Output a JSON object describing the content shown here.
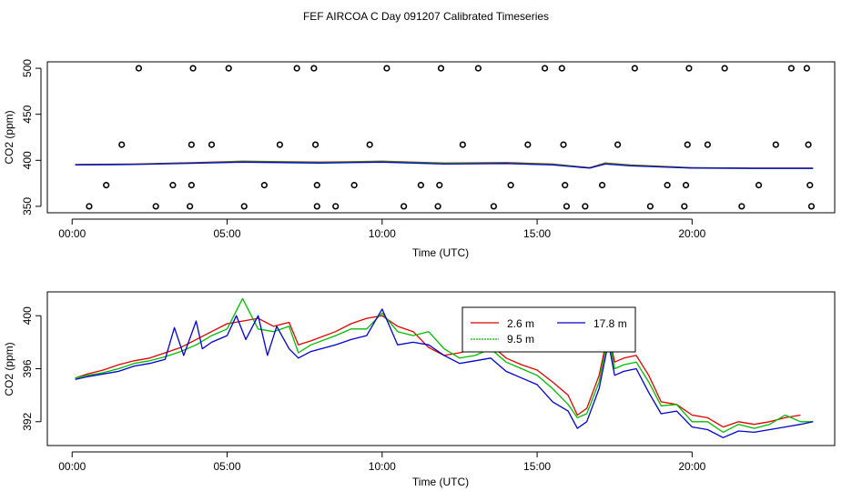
{
  "title": "FEF AIRCOA C  Day 091207  Calibrated Timeseries",
  "chart_data": [
    {
      "type": "scatter",
      "name": "top-panel",
      "xlabel": "Time (UTC)",
      "ylabel": "CO2 (ppm)",
      "xlim": [
        -0.8,
        24.6
      ],
      "ylim": [
        343,
        507
      ],
      "xticks": [
        0,
        5,
        10,
        15,
        20
      ],
      "xtick_labels": [
        "00:00",
        "05:00",
        "10:00",
        "15:00",
        "20:00"
      ],
      "yticks": [
        350,
        400,
        450,
        500
      ],
      "ytick_labels": [
        "350",
        "400",
        "450",
        "500"
      ],
      "calibration_points": {
        "x": [
          0.55,
          1.1,
          1.6,
          2.15,
          2.7,
          3.25,
          3.8,
          3.85,
          3.85,
          3.9,
          4.5,
          5.05,
          5.55,
          6.2,
          6.7,
          7.25,
          7.8,
          7.85,
          7.9,
          7.9,
          8.5,
          9.1,
          9.6,
          10.15,
          10.7,
          11.25,
          11.8,
          11.85,
          11.9,
          12.6,
          13.1,
          13.6,
          14.15,
          14.7,
          15.25,
          15.8,
          15.85,
          15.9,
          15.95,
          16.55,
          17.1,
          17.6,
          18.15,
          18.65,
          19.2,
          19.75,
          19.8,
          19.85,
          19.9,
          20.5,
          21.05,
          21.6,
          22.15,
          22.7,
          23.2,
          23.7,
          23.75,
          23.8,
          23.85
        ],
        "y": [
          350,
          373,
          417,
          500,
          350,
          373,
          350,
          373,
          417,
          500,
          417,
          500,
          350,
          373,
          417,
          500,
          500,
          417,
          373,
          350,
          350,
          373,
          417,
          500,
          350,
          373,
          350,
          373,
          500,
          417,
          500,
          350,
          373,
          417,
          500,
          500,
          417,
          373,
          350,
          350,
          373,
          417,
          500,
          350,
          373,
          350,
          373,
          417,
          500,
          417,
          500,
          350,
          373,
          417,
          500,
          500,
          417,
          373,
          350
        ]
      },
      "series": [
        {
          "name": "2.6 m",
          "color": "#dd0000",
          "x": [
            0.1,
            2,
            4,
            5.5,
            8,
            10,
            12,
            14,
            15.5,
            16.7,
            17.2,
            18,
            20,
            22,
            23.9
          ],
          "values": [
            395.5,
            396,
            397.5,
            399,
            398,
            399,
            397,
            397.5,
            396,
            392,
            397,
            395,
            392,
            391.5,
            391.5
          ]
        },
        {
          "name": "9.5 m",
          "color": "#00bb00",
          "x": [
            0.1,
            2,
            4,
            5.5,
            8,
            10,
            12,
            14,
            15.5,
            16.7,
            17.2,
            18,
            20,
            22,
            23.9
          ],
          "values": [
            395.3,
            395.8,
            397.2,
            398.6,
            397.6,
            398.6,
            396.6,
            397,
            395.6,
            391.8,
            396.6,
            394.6,
            391.7,
            391.4,
            391.4
          ]
        },
        {
          "name": "17.8 m",
          "color": "#0000cc",
          "x": [
            0.1,
            2,
            4,
            5.5,
            8,
            10,
            12,
            14,
            15.5,
            16.7,
            17.2,
            18,
            20,
            22,
            23.9
          ],
          "values": [
            395,
            395.5,
            396.8,
            398,
            397,
            398,
            396,
            396.5,
            395,
            391.5,
            396,
            394,
            391.5,
            391.2,
            391.2
          ]
        }
      ]
    },
    {
      "type": "line",
      "name": "bottom-panel",
      "xlabel": "Time (UTC)",
      "ylabel": "CO2 (ppm)",
      "xlim": [
        -0.8,
        24.6
      ],
      "ylim": [
        390.2,
        401.8
      ],
      "xticks": [
        0,
        5,
        10,
        15,
        20
      ],
      "xtick_labels": [
        "00:00",
        "05:00",
        "10:00",
        "15:00",
        "20:00"
      ],
      "yticks": [
        392,
        396,
        400
      ],
      "ytick_labels": [
        "392",
        "396",
        "400"
      ],
      "legend": {
        "placement": "top-center",
        "entries": [
          "2.6 m",
          "9.5 m",
          "17.8 m"
        ]
      },
      "series": [
        {
          "name": "2.6 m",
          "color": "#dd0000",
          "x": [
            0.1,
            0.5,
            1,
            1.5,
            2,
            2.5,
            3,
            3.5,
            4,
            4.5,
            5,
            5.5,
            6,
            6.5,
            7,
            7.3,
            7.7,
            8.5,
            9,
            9.5,
            10,
            10.5,
            11,
            11.5,
            12,
            12.5,
            13,
            13.5,
            14,
            14.5,
            15,
            15.5,
            16,
            16.3,
            16.6,
            17,
            17.3,
            17.5,
            17.8,
            18.2,
            18.6,
            19,
            19.5,
            20,
            20.5,
            21,
            21.5,
            22,
            22.5,
            23,
            23.5
          ],
          "values": [
            395.3,
            395.6,
            395.9,
            396.3,
            396.6,
            396.8,
            397.2,
            397.6,
            398.2,
            398.8,
            399.4,
            399.6,
            399.8,
            399.2,
            399.5,
            397.8,
            398.1,
            398.8,
            399.4,
            399.8,
            400.0,
            399.2,
            398.8,
            397.6,
            397.0,
            397.2,
            397.5,
            397.8,
            396.8,
            396.3,
            395.9,
            395.0,
            394.0,
            392.5,
            393.0,
            395.5,
            398.8,
            396.5,
            396.8,
            397.0,
            395.5,
            393.5,
            393.3,
            392.5,
            392.3,
            391.6,
            392.0,
            391.8,
            392.0,
            392.3,
            392.5
          ]
        },
        {
          "name": "9.5 m",
          "color": "#00bb00",
          "x": [
            0.1,
            0.5,
            1,
            1.5,
            2,
            2.5,
            3,
            3.5,
            4,
            4.5,
            5,
            5.5,
            6,
            6.5,
            7,
            7.3,
            7.7,
            8.5,
            9,
            9.5,
            10,
            10.5,
            11,
            11.5,
            12,
            12.5,
            13,
            13.5,
            14,
            14.5,
            15,
            15.5,
            16,
            16.3,
            16.6,
            17,
            17.3,
            17.5,
            17.8,
            18.2,
            18.6,
            19,
            19.5,
            20,
            20.5,
            21,
            21.5,
            22,
            22.5,
            23,
            23.5,
            23.9
          ],
          "values": [
            395.3,
            395.5,
            395.7,
            396.0,
            396.4,
            396.6,
            396.9,
            397.3,
            397.8,
            398.5,
            399.0,
            401.3,
            399.0,
            398.8,
            399.2,
            397.2,
            397.8,
            398.5,
            399.0,
            399.0,
            400.2,
            398.8,
            398.5,
            398.8,
            397.5,
            396.8,
            397.0,
            397.5,
            396.5,
            396.0,
            395.5,
            394.5,
            393.3,
            392.3,
            392.6,
            395.0,
            398.5,
            396.0,
            396.3,
            396.5,
            395.0,
            393.2,
            393.3,
            392.0,
            392.0,
            391.2,
            391.8,
            391.5,
            391.8,
            392.5,
            392.0,
            392.0
          ]
        },
        {
          "name": "17.8 m",
          "color": "#0000cc",
          "x": [
            0.1,
            0.5,
            1,
            1.5,
            2,
            2.5,
            3,
            3.3,
            3.6,
            4,
            4.2,
            4.5,
            5,
            5.3,
            5.6,
            6,
            6.3,
            6.6,
            7,
            7.3,
            7.7,
            8.5,
            9,
            9.5,
            10,
            10.5,
            11,
            11.5,
            12,
            12.5,
            13,
            13.5,
            14,
            14.5,
            15,
            15.5,
            16,
            16.3,
            16.6,
            17,
            17.3,
            17.5,
            17.8,
            18.2,
            18.6,
            19,
            19.5,
            20,
            20.5,
            21,
            21.5,
            22,
            22.5,
            23,
            23.5,
            23.9
          ],
          "values": [
            395.2,
            395.4,
            395.6,
            395.8,
            396.2,
            396.4,
            396.7,
            399.1,
            397.0,
            399.6,
            397.5,
            398.0,
            398.5,
            400.0,
            398.2,
            400.0,
            397.0,
            399.2,
            397.5,
            396.8,
            397.3,
            397.8,
            398.2,
            398.5,
            400.5,
            397.8,
            398.0,
            397.8,
            397.0,
            396.4,
            396.6,
            396.8,
            395.8,
            395.3,
            394.8,
            393.5,
            392.8,
            391.5,
            392.0,
            394.5,
            398.0,
            395.5,
            395.8,
            396.0,
            394.2,
            392.6,
            392.8,
            391.6,
            391.4,
            390.8,
            391.3,
            391.2,
            391.4,
            391.6,
            391.8,
            392.0
          ]
        }
      ]
    }
  ]
}
